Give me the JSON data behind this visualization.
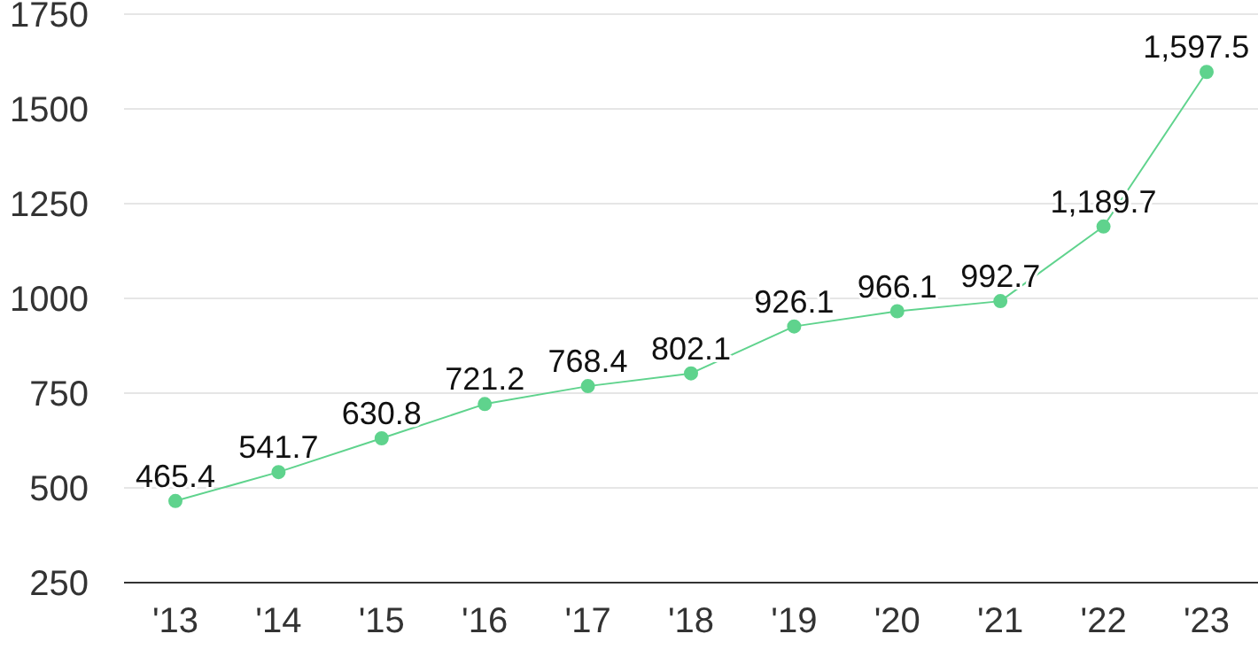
{
  "chart_data": {
    "type": "line",
    "categories": [
      "'13",
      "'14",
      "'15",
      "'16",
      "'17",
      "'18",
      "'19",
      "'20",
      "'21",
      "'22",
      "'23"
    ],
    "series": [
      {
        "color": "#5fd38d",
        "values": [
          465.4,
          541.7,
          630.8,
          721.2,
          768.4,
          802.1,
          926.1,
          966.1,
          992.7,
          1189.7,
          1597.5
        ],
        "value_labels": [
          "465.4",
          "541.7",
          "630.8",
          "721.2",
          "768.4",
          "802.1",
          "926.1",
          "966.1",
          "992.7",
          "1,189.7",
          "1,597.5"
        ]
      }
    ],
    "ylim": [
      250,
      1750
    ],
    "yticks": [
      250,
      500,
      750,
      1000,
      1250,
      1500,
      1750
    ],
    "grid": "y",
    "marker": "circle",
    "line_style": "solid",
    "legend": false
  }
}
